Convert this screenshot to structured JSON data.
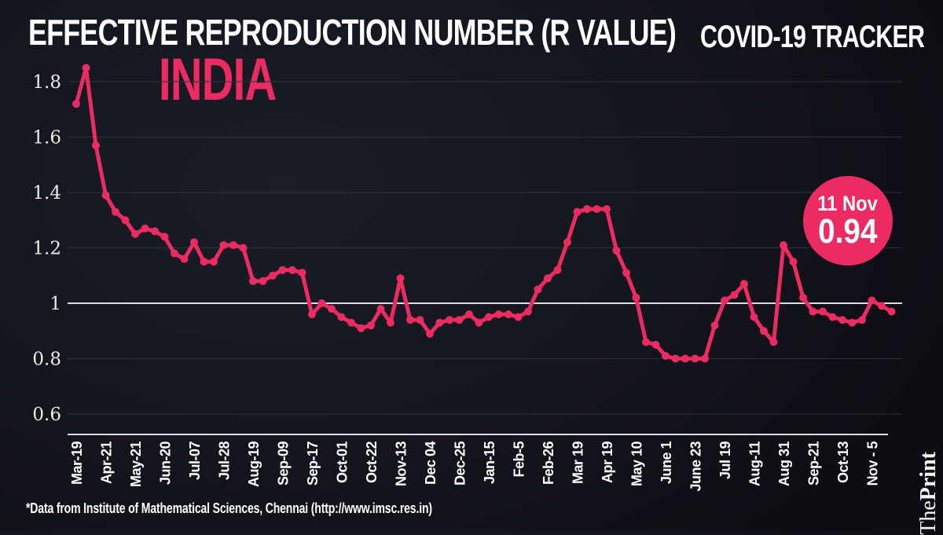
{
  "header": {
    "title": "EFFECTIVE REPRODUCTION NUMBER (R VALUE)",
    "tracker_label": "COVID-19 TRACKER",
    "country": "INDIA"
  },
  "badge": {
    "date": "11 Nov",
    "value": "0.94"
  },
  "footer": {
    "source_note": "*Data from Institute of Mathematical Sciences, Chennai (http://www.imsc.res.in)"
  },
  "brand": {
    "part1": "The",
    "part2": "Print"
  },
  "colors": {
    "background": "#14161E",
    "line": "#EC2B62",
    "accent": "#EC2B62",
    "grid": "#2E313A",
    "emphasis_gridline": "#DCDDE1",
    "axis_line": "#DCDDE1",
    "tick_text": "#ECE9E2",
    "label_text": "#FFFFFF"
  },
  "chart_data": {
    "type": "line",
    "title": "EFFECTIVE REPRODUCTION NUMBER (R VALUE) - INDIA",
    "xlabel": "",
    "ylabel": "",
    "ylim": [
      0.55,
      1.9
    ],
    "grid": "horizontal",
    "y_ticks": [
      "1.8",
      "1.6",
      "1.4",
      "1.2",
      "1",
      "0.8",
      "0.6"
    ],
    "emphasized_y_tick": "1",
    "categories": [
      "Mar-19",
      "Apr-21",
      "May-21",
      "Jun-20",
      "Jul-07",
      "Jul-28",
      "Aug-19",
      "Sep-09",
      "Sep-17",
      "Oct-01",
      "Oct-22",
      "Nov-13",
      "Dec 04",
      "Dec-25",
      "Jan-15",
      "Feb-5",
      "Feb-26",
      "Mar 19",
      "Apr 19",
      "May 10",
      "June 1",
      "June 23",
      "Jul 19",
      "Aug-11",
      "Aug 31",
      "Sep-21",
      "Oct-13",
      "Nov - 5"
    ],
    "label_every": 3,
    "values": [
      1.72,
      1.85,
      1.57,
      1.39,
      1.33,
      1.3,
      1.25,
      1.27,
      1.26,
      1.24,
      1.18,
      1.16,
      1.22,
      1.15,
      1.15,
      1.21,
      1.21,
      1.2,
      1.08,
      1.08,
      1.1,
      1.12,
      1.12,
      1.11,
      0.96,
      1.0,
      0.98,
      0.95,
      0.93,
      0.91,
      0.92,
      0.98,
      0.93,
      1.09,
      0.94,
      0.94,
      0.89,
      0.93,
      0.94,
      0.94,
      0.96,
      0.93,
      0.95,
      0.96,
      0.96,
      0.95,
      0.97,
      1.05,
      1.09,
      1.12,
      1.22,
      1.33,
      1.34,
      1.34,
      1.34,
      1.19,
      1.11,
      1.02,
      0.86,
      0.85,
      0.81,
      0.8,
      0.8,
      0.8,
      0.8,
      0.92,
      1.01,
      1.03,
      1.07,
      0.95,
      0.9,
      0.86,
      1.21,
      1.15,
      1.02,
      0.97,
      0.97,
      0.95,
      0.94,
      0.93,
      0.94,
      1.01,
      0.99,
      0.97
    ],
    "annotation": {
      "date": "11 Nov",
      "value": 0.94
    }
  }
}
